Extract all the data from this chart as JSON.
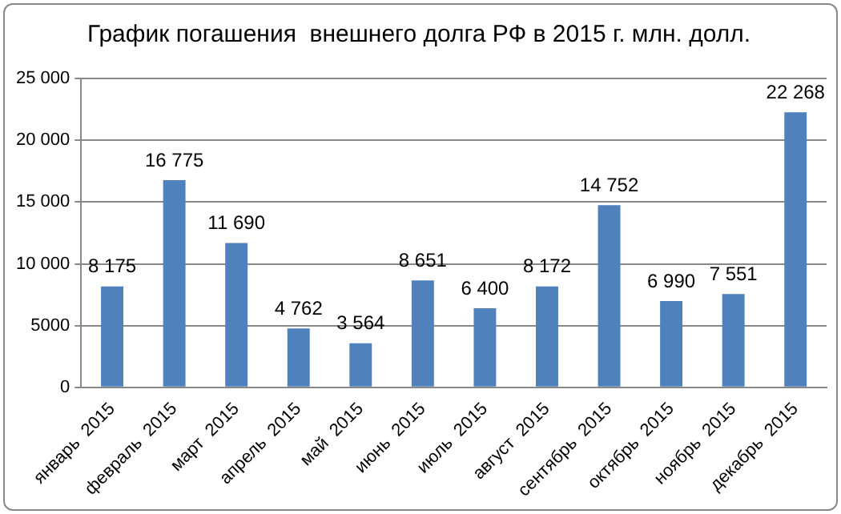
{
  "chart_data": {
    "type": "bar",
    "title": "График погашения  внешнего долга РФ в 2015 г. млн. долл.",
    "categories": [
      "январь  2015",
      "февраль  2015",
      "март  2015",
      "апрель  2015",
      "май  2015",
      "июнь  2015",
      "июль  2015",
      "август  2015",
      "сентябрь  2015",
      "октябрь  2015",
      "ноябрь  2015",
      "декабрь  2015"
    ],
    "values": [
      8175,
      16775,
      11690,
      4762,
      3564,
      8651,
      6400,
      8172,
      14752,
      6990,
      7551,
      22268
    ],
    "value_labels": [
      "8 175",
      "16 775",
      "11 690",
      "4 762",
      "3 564",
      "8 651",
      "6 400",
      "8 172",
      "14 752",
      "6 990",
      "7 551",
      "22 268"
    ],
    "color": "#4f81bd",
    "ylim": [
      0,
      25000
    ],
    "yticks": [
      0,
      5000,
      {
        "value": 10000,
        "label": "10 000"
      },
      {
        "value": 15000,
        "label": "15 000"
      },
      {
        "value": 20000,
        "label": "20 000"
      },
      {
        "value": 25000,
        "label": "25 000"
      }
    ],
    "grid": "y"
  }
}
